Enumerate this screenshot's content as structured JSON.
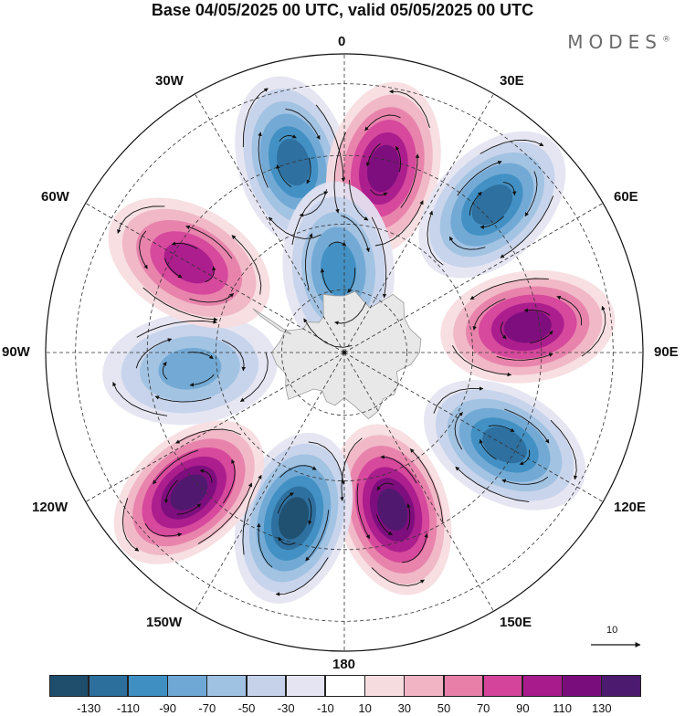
{
  "header": {
    "title": "Base 04/05/2025 00 UTC, valid 05/05/2025 00 UTC",
    "brand": "MODES",
    "brand_mark": "®"
  },
  "map": {
    "projection": "south-polar-stereographic",
    "longitude_labels": [
      "0",
      "30E",
      "60E",
      "90E",
      "120E",
      "150E",
      "180",
      "150W",
      "120W",
      "90W",
      "60W",
      "30W"
    ],
    "reference_vector": {
      "label": "10"
    },
    "land_color": "#e8e8e8",
    "anomaly_centers": [
      {
        "lon": -15,
        "lat_frac": 0.66,
        "value": -110
      },
      {
        "lon": 12,
        "lat_frac": 0.63,
        "value": 110
      },
      {
        "lon": 45,
        "lat_frac": 0.7,
        "value": -120
      },
      {
        "lon": 82,
        "lat_frac": 0.62,
        "value": 110
      },
      {
        "lon": 120,
        "lat_frac": 0.62,
        "value": -115
      },
      {
        "lon": 163,
        "lat_frac": 0.55,
        "value": 130
      },
      {
        "lon": -163,
        "lat_frac": 0.58,
        "value": -125
      },
      {
        "lon": -132,
        "lat_frac": 0.7,
        "value": 125
      },
      {
        "lon": -96,
        "lat_frac": 0.52,
        "value": -80
      },
      {
        "lon": -60,
        "lat_frac": 0.6,
        "value": 100
      },
      {
        "lon": -4,
        "lat_frac": 0.28,
        "value": -90
      }
    ]
  },
  "legend": {
    "ticks": [
      "-130",
      "-110",
      "-90",
      "-70",
      "-50",
      "-30",
      "-10",
      "10",
      "30",
      "50",
      "70",
      "90",
      "110",
      "130"
    ],
    "colors": [
      "#1f4e6d",
      "#2c6e9c",
      "#3f8fc2",
      "#6fa8d4",
      "#9fc1e2",
      "#c6d2ea",
      "#e4e4f2",
      "#ffffff",
      "#f6dcdf",
      "#f0b4c4",
      "#e77fa9",
      "#d4449a",
      "#a81b8c",
      "#7a0d7c",
      "#4c1a6e"
    ]
  }
}
